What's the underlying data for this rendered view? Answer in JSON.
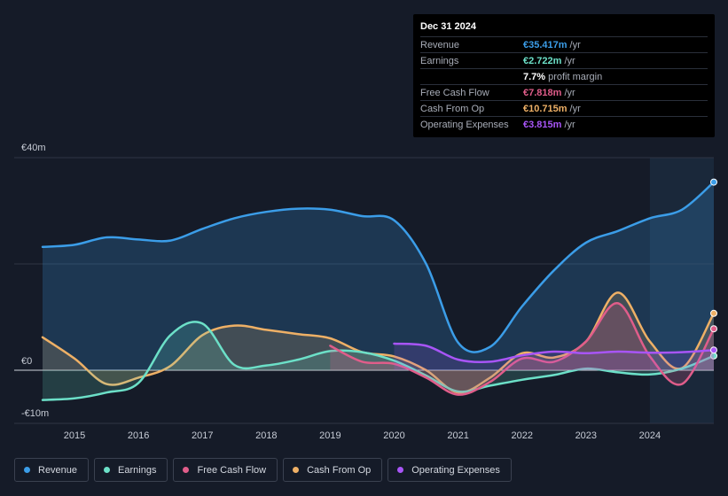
{
  "tooltip": {
    "date": "Dec 31 2024",
    "rows": [
      {
        "label": "Revenue",
        "value": "€35.417m",
        "unit": "/yr",
        "color": "#3b9de8"
      },
      {
        "label": "Earnings",
        "value": "€2.722m",
        "unit": "/yr",
        "color": "#6ce0c8"
      },
      {
        "label": "",
        "value": "7.7%",
        "unit": "profit margin",
        "color": "#ffffff"
      },
      {
        "label": "Free Cash Flow",
        "value": "€7.818m",
        "unit": "/yr",
        "color": "#e05d8a"
      },
      {
        "label": "Cash From Op",
        "value": "€10.715m",
        "unit": "/yr",
        "color": "#eeb066"
      },
      {
        "label": "Operating Expenses",
        "value": "€3.815m",
        "unit": "/yr",
        "color": "#a855f7"
      }
    ]
  },
  "legend": [
    {
      "label": "Revenue",
      "color": "#3b9de8"
    },
    {
      "label": "Earnings",
      "color": "#6ce0c8"
    },
    {
      "label": "Free Cash Flow",
      "color": "#e05d8a"
    },
    {
      "label": "Cash From Op",
      "color": "#eeb066"
    },
    {
      "label": "Operating Expenses",
      "color": "#a855f7"
    }
  ],
  "chart_data": {
    "type": "line",
    "title": "",
    "xlabel": "",
    "ylabel": "",
    "ylim": [
      -10,
      40
    ],
    "xlim": [
      2014.5,
      2025.0
    ],
    "y_tick_labels": [
      {
        "v": 40,
        "label": "€40m"
      },
      {
        "v": 0,
        "label": "€0"
      },
      {
        "v": -10,
        "label": "-€10m"
      }
    ],
    "x_tick_labels": [
      "2015",
      "2016",
      "2017",
      "2018",
      "2019",
      "2020",
      "2021",
      "2022",
      "2023",
      "2024"
    ],
    "x_ticks": [
      2015,
      2016,
      2017,
      2018,
      2019,
      2020,
      2021,
      2022,
      2023,
      2024
    ],
    "highlight_start": 2024.0,
    "series": [
      {
        "name": "Revenue",
        "color": "#3b9de8",
        "x": [
          2014.5,
          2015.0,
          2015.5,
          2016.0,
          2016.5,
          2017.0,
          2017.5,
          2018.0,
          2018.5,
          2019.0,
          2019.5,
          2020.0,
          2020.5,
          2021.0,
          2021.5,
          2022.0,
          2022.5,
          2023.0,
          2023.5,
          2024.0,
          2024.5,
          2025.0
        ],
        "y": [
          23.2,
          23.6,
          25.0,
          24.6,
          24.4,
          26.6,
          28.6,
          29.8,
          30.4,
          30.2,
          29.0,
          28.2,
          20.0,
          5.2,
          4.4,
          12.0,
          18.8,
          24.0,
          26.2,
          28.6,
          30.2,
          35.4
        ]
      },
      {
        "name": "Earnings",
        "color": "#6ce0c8",
        "x": [
          2014.5,
          2015.0,
          2015.5,
          2016.0,
          2016.5,
          2017.0,
          2017.5,
          2018.0,
          2018.5,
          2019.0,
          2019.5,
          2020.0,
          2020.5,
          2021.0,
          2021.5,
          2022.0,
          2022.5,
          2023.0,
          2023.5,
          2024.0,
          2024.5,
          2025.0
        ],
        "y": [
          -5.6,
          -5.3,
          -4.2,
          -2.4,
          6.6,
          8.8,
          1.0,
          0.9,
          2.0,
          3.6,
          3.4,
          1.8,
          -1.0,
          -4.0,
          -2.9,
          -1.8,
          -0.9,
          0.3,
          -0.4,
          -0.8,
          0.3,
          2.7
        ]
      },
      {
        "name": "Free Cash Flow",
        "color": "#e05d8a",
        "x": [
          2019.0,
          2019.5,
          2020.0,
          2020.5,
          2021.0,
          2021.5,
          2022.0,
          2022.5,
          2023.0,
          2023.5,
          2024.0,
          2024.5,
          2025.0
        ],
        "y": [
          4.6,
          1.6,
          1.2,
          -1.4,
          -4.6,
          -2.2,
          2.2,
          1.6,
          5.4,
          12.6,
          2.6,
          -2.6,
          7.8
        ]
      },
      {
        "name": "Cash From Op",
        "color": "#eeb066",
        "x": [
          2014.5,
          2015.0,
          2015.5,
          2016.0,
          2016.5,
          2017.0,
          2017.5,
          2018.0,
          2018.5,
          2019.0,
          2019.5,
          2020.0,
          2020.5,
          2021.0,
          2021.5,
          2022.0,
          2022.5,
          2023.0,
          2023.5,
          2024.0,
          2024.5,
          2025.0
        ],
        "y": [
          6.2,
          2.2,
          -2.6,
          -1.4,
          0.8,
          6.6,
          8.4,
          7.6,
          6.8,
          6.0,
          3.4,
          2.6,
          0.0,
          -4.2,
          -1.4,
          3.2,
          2.4,
          5.4,
          14.6,
          5.4,
          0.4,
          10.7
        ]
      },
      {
        "name": "Operating Expenses",
        "color": "#a855f7",
        "x": [
          2020.0,
          2020.5,
          2021.0,
          2021.5,
          2022.0,
          2022.5,
          2023.0,
          2023.5,
          2024.0,
          2024.5,
          2025.0
        ],
        "y": [
          5.0,
          4.6,
          2.0,
          1.6,
          2.8,
          3.5,
          3.2,
          3.5,
          3.3,
          3.4,
          3.8
        ]
      }
    ]
  }
}
